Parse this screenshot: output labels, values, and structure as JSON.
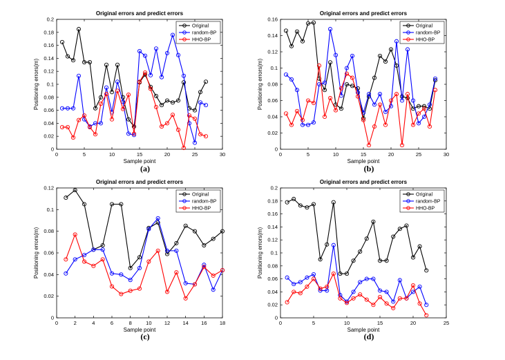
{
  "colors": {
    "Original": "#000000",
    "random-BP": "#0000ff",
    "HHO-BP": "#ff0000"
  },
  "chart_data": [
    {
      "type": "line",
      "panel_label": "(a)",
      "title": "Original errors and predict errors",
      "xlabel": "Sample point",
      "ylabel": "Positioning errors(m)",
      "xlim": [
        0,
        30
      ],
      "ylim": [
        0,
        0.2
      ],
      "xticks": [
        0,
        5,
        10,
        15,
        20,
        25,
        30
      ],
      "xtick_labels": [
        "0",
        "5",
        "10",
        "15",
        "20",
        "25",
        "30"
      ],
      "yticks": [
        0,
        0.02,
        0.04,
        0.06,
        0.08,
        0.1,
        0.12,
        0.14,
        0.16,
        0.18,
        0.2
      ],
      "ytick_labels": [
        "0",
        "0.02",
        "0.04",
        "0.06",
        "0.08",
        "0.1",
        "0.12",
        "0.14",
        "0.16",
        "0.18",
        "0.2"
      ],
      "x": [
        1,
        2,
        3,
        4,
        5,
        6,
        7,
        8,
        9,
        10,
        11,
        12,
        13,
        14,
        15,
        16,
        17,
        18,
        19,
        20,
        21,
        22,
        23,
        24,
        25,
        26,
        27
      ],
      "legend": "top-right",
      "series": [
        {
          "name": "Original",
          "values": [
            0.165,
            0.143,
            0.137,
            0.185,
            0.134,
            0.134,
            0.063,
            0.08,
            0.13,
            0.088,
            0.13,
            0.08,
            0.046,
            0.035,
            0.103,
            0.115,
            0.096,
            0.082,
            0.068,
            0.075,
            0.072,
            0.075,
            0.103,
            0.063,
            0.06,
            0.088,
            0.104
          ]
        },
        {
          "name": "random-BP",
          "values": [
            0.063,
            0.063,
            0.063,
            0.113,
            0.046,
            0.035,
            0.04,
            0.04,
            0.095,
            0.057,
            0.104,
            0.073,
            0.024,
            0.022,
            0.151,
            0.144,
            0.114,
            0.155,
            0.111,
            0.148,
            0.176,
            0.145,
            0.113,
            0.04,
            0.01,
            0.072,
            0.068
          ]
        },
        {
          "name": "HHO-BP",
          "values": [
            0.034,
            0.034,
            0.018,
            0.045,
            0.052,
            0.034,
            0.023,
            0.07,
            0.085,
            0.046,
            0.09,
            0.062,
            0.084,
            0.024,
            0.104,
            0.118,
            0.093,
            0.065,
            0.035,
            0.04,
            0.053,
            0.03,
            0.002,
            0.052,
            0.047,
            0.023,
            0.02
          ]
        }
      ]
    },
    {
      "type": "line",
      "panel_label": "(b)",
      "title": "Original errors and predict errors",
      "xlabel": "Sample point",
      "ylabel": "Positioning errors(m)",
      "xlim": [
        0,
        30
      ],
      "ylim": [
        0,
        0.16
      ],
      "xticks": [
        0,
        5,
        10,
        15,
        20,
        25,
        30
      ],
      "xtick_labels": [
        "0",
        "5",
        "10",
        "15",
        "20",
        "25",
        "30"
      ],
      "yticks": [
        0,
        0.02,
        0.04,
        0.06,
        0.08,
        0.1,
        0.12,
        0.14,
        0.16
      ],
      "ytick_labels": [
        "0",
        "0.02",
        "0.04",
        "0.06",
        "0.08",
        "0.1",
        "0.12",
        "0.14",
        "0.16"
      ],
      "x": [
        1,
        2,
        3,
        4,
        5,
        6,
        7,
        8,
        9,
        10,
        11,
        12,
        13,
        14,
        15,
        16,
        17,
        18,
        19,
        20,
        21,
        22,
        23,
        24,
        25,
        26,
        27,
        28
      ],
      "legend": "top-right",
      "series": [
        {
          "name": "Original",
          "values": [
            0.146,
            0.127,
            0.145,
            0.133,
            0.155,
            0.156,
            0.087,
            0.073,
            0.107,
            0.055,
            0.05,
            0.08,
            0.078,
            0.075,
            0.038,
            0.065,
            0.088,
            0.115,
            0.108,
            0.123,
            0.103,
            0.065,
            0.063,
            0.05,
            0.053,
            0.053,
            0.05,
            0.085
          ]
        },
        {
          "name": "random-BP",
          "values": [
            0.092,
            0.086,
            0.073,
            0.03,
            0.03,
            0.033,
            0.08,
            0.082,
            0.148,
            0.116,
            0.066,
            0.1,
            0.115,
            0.07,
            0.045,
            0.068,
            0.055,
            0.068,
            0.046,
            0.053,
            0.133,
            0.06,
            0.123,
            0.06,
            0.032,
            0.04,
            0.055,
            0.087
          ]
        },
        {
          "name": "HHO-BP",
          "values": [
            0.044,
            0.03,
            0.047,
            0.036,
            0.06,
            0.057,
            0.103,
            0.04,
            0.063,
            0.048,
            0.075,
            0.093,
            0.088,
            0.065,
            0.036,
            0.005,
            0.028,
            0.055,
            0.03,
            0.06,
            0.068,
            0.005,
            0.068,
            0.03,
            0.044,
            0.05,
            0.028,
            0.073
          ]
        }
      ]
    },
    {
      "type": "line",
      "panel_label": "(c)",
      "title": "Original errors and predict errors",
      "xlabel": "Sample point",
      "ylabel": "Positioning errors(m)",
      "xlim": [
        0,
        18
      ],
      "ylim": [
        0,
        0.12
      ],
      "xticks": [
        0,
        2,
        4,
        6,
        8,
        10,
        12,
        14,
        16,
        18
      ],
      "xtick_labels": [
        "0",
        "2",
        "4",
        "6",
        "8",
        "10",
        "12",
        "14",
        "16",
        "18"
      ],
      "yticks": [
        0,
        0.02,
        0.04,
        0.06,
        0.08,
        0.1,
        0.12
      ],
      "ytick_labels": [
        "0",
        "0.02",
        "0.04",
        "0.06",
        "0.08",
        "0.1",
        "0.12"
      ],
      "x": [
        1,
        2,
        3,
        4,
        5,
        6,
        7,
        8,
        9,
        10,
        11,
        12,
        13,
        14,
        15,
        16,
        17,
        18
      ],
      "legend": "top-right",
      "series": [
        {
          "name": "Original",
          "values": [
            0.111,
            0.118,
            0.105,
            0.063,
            0.067,
            0.105,
            0.105,
            0.046,
            0.056,
            0.083,
            0.088,
            0.059,
            0.069,
            0.085,
            0.08,
            0.067,
            0.073,
            0.08
          ]
        },
        {
          "name": "random-BP",
          "values": [
            0.041,
            0.054,
            0.058,
            0.063,
            0.063,
            0.041,
            0.04,
            0.035,
            0.046,
            0.082,
            0.092,
            0.062,
            0.062,
            0.032,
            0.031,
            0.049,
            0.026,
            0.044
          ]
        },
        {
          "name": "HHO-BP",
          "values": [
            0.054,
            0.077,
            0.052,
            0.048,
            0.054,
            0.029,
            0.022,
            0.025,
            0.027,
            0.052,
            0.062,
            0.024,
            0.042,
            0.018,
            0.031,
            0.047,
            0.039,
            0.044
          ]
        }
      ]
    },
    {
      "type": "line",
      "panel_label": "(d)",
      "title": "Original errors and predict errors",
      "xlabel": "Sample point",
      "ylabel": "Positioning errors(m)",
      "xlim": [
        0,
        25
      ],
      "ylim": [
        0,
        0.2
      ],
      "xticks": [
        0,
        5,
        10,
        15,
        20,
        25
      ],
      "xtick_labels": [
        "0",
        "5",
        "10",
        "15",
        "20",
        "25"
      ],
      "yticks": [
        0,
        0.02,
        0.04,
        0.06,
        0.08,
        0.1,
        0.12,
        0.14,
        0.16,
        0.18,
        0.2
      ],
      "ytick_labels": [
        "0",
        "0.02",
        "0.04",
        "0.06",
        "0.08",
        "0.1",
        "0.12",
        "0.14",
        "0.16",
        "0.18",
        "0.2"
      ],
      "x": [
        1,
        2,
        3,
        4,
        5,
        6,
        7,
        8,
        9,
        10,
        11,
        12,
        13,
        14,
        15,
        16,
        17,
        18,
        19,
        20,
        21,
        22
      ],
      "legend": "top-right",
      "series": [
        {
          "name": "Original",
          "values": [
            0.178,
            0.183,
            0.173,
            0.17,
            0.175,
            0.09,
            0.113,
            0.178,
            0.068,
            0.068,
            0.088,
            0.102,
            0.122,
            0.148,
            0.088,
            0.088,
            0.125,
            0.137,
            0.142,
            0.093,
            0.11,
            0.073
          ]
        },
        {
          "name": "random-BP",
          "values": [
            0.062,
            0.052,
            0.055,
            0.062,
            0.067,
            0.042,
            0.042,
            0.112,
            0.035,
            0.025,
            0.04,
            0.055,
            0.06,
            0.06,
            0.042,
            0.04,
            0.025,
            0.058,
            0.03,
            0.04,
            0.048,
            0.02
          ]
        },
        {
          "name": "HHO-BP",
          "values": [
            0.024,
            0.04,
            0.038,
            0.048,
            0.06,
            0.045,
            0.048,
            0.068,
            0.03,
            0.023,
            0.03,
            0.036,
            0.028,
            0.02,
            0.032,
            0.022,
            0.015,
            0.03,
            0.03,
            0.05,
            0.022,
            0.004
          ]
        }
      ]
    }
  ]
}
